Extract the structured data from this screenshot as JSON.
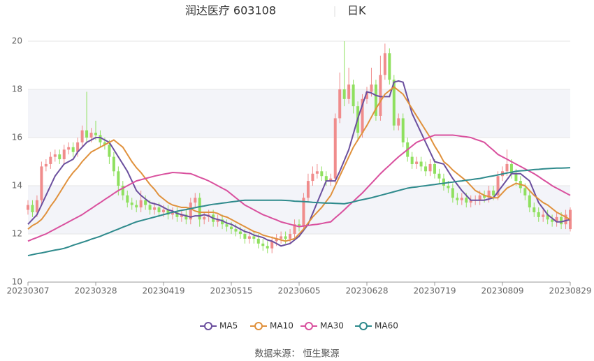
{
  "chart_data": {
    "type": "candlestick",
    "title": "润达医疗 603108",
    "subtitle": "日K",
    "source": "数据来源： 恒生聚源",
    "categories": [
      "20230307",
      null,
      null,
      null,
      null,
      null,
      null,
      null,
      null,
      null,
      null,
      null,
      null,
      null,
      null,
      "20230328",
      null,
      null,
      null,
      null,
      null,
      null,
      null,
      null,
      null,
      null,
      null,
      null,
      null,
      null,
      "20230419",
      null,
      null,
      null,
      null,
      null,
      null,
      null,
      null,
      null,
      null,
      null,
      null,
      null,
      null,
      "20230515",
      null,
      null,
      null,
      null,
      null,
      null,
      null,
      null,
      null,
      null,
      null,
      null,
      null,
      null,
      "20230605",
      null,
      null,
      null,
      null,
      null,
      null,
      null,
      null,
      null,
      null,
      null,
      null,
      null,
      null,
      "20230628",
      null,
      null,
      null,
      null,
      null,
      null,
      null,
      null,
      null,
      null,
      null,
      null,
      null,
      null,
      "20230719",
      null,
      null,
      null,
      null,
      null,
      null,
      null,
      null,
      null,
      null,
      null,
      null,
      null,
      null,
      "20230809",
      null,
      null,
      null,
      null,
      null,
      null,
      null,
      null,
      null,
      null,
      null,
      null,
      null,
      null,
      "20230829"
    ],
    "ohlc": [
      [
        13.0,
        13.4,
        12.8,
        13.2
      ],
      [
        13.2,
        13.4,
        12.7,
        12.9
      ],
      [
        12.9,
        13.6,
        12.7,
        13.4
      ],
      [
        13.4,
        15.0,
        13.2,
        14.8
      ],
      [
        14.8,
        15.1,
        14.6,
        14.9
      ],
      [
        14.9,
        15.4,
        14.7,
        15.2
      ],
      [
        15.2,
        15.5,
        15.0,
        15.3
      ],
      [
        15.3,
        15.5,
        14.9,
        15.1
      ],
      [
        15.1,
        15.7,
        14.9,
        15.5
      ],
      [
        15.5,
        15.8,
        15.3,
        15.6
      ],
      [
        15.6,
        15.8,
        15.2,
        15.4
      ],
      [
        15.4,
        16.0,
        15.2,
        15.8
      ],
      [
        15.8,
        16.5,
        15.6,
        16.3
      ],
      [
        16.3,
        17.9,
        15.8,
        16.0
      ],
      [
        16.0,
        16.4,
        15.8,
        16.2
      ],
      [
        16.2,
        16.7,
        15.9,
        16.1
      ],
      [
        16.1,
        16.3,
        15.6,
        15.8
      ],
      [
        15.8,
        16.0,
        15.5,
        15.7
      ],
      [
        15.7,
        15.9,
        14.9,
        15.2
      ],
      [
        15.2,
        15.4,
        14.4,
        14.6
      ],
      [
        14.6,
        14.8,
        13.6,
        14.0
      ],
      [
        14.0,
        14.2,
        13.4,
        13.6
      ],
      [
        13.6,
        13.8,
        13.1,
        13.3
      ],
      [
        13.3,
        13.5,
        13.0,
        13.2
      ],
      [
        13.2,
        13.4,
        12.9,
        13.1
      ],
      [
        13.1,
        13.8,
        12.9,
        13.4
      ],
      [
        13.4,
        13.6,
        13.0,
        13.2
      ],
      [
        13.2,
        13.4,
        12.8,
        13.0
      ],
      [
        13.0,
        13.3,
        12.8,
        13.1
      ],
      [
        13.1,
        13.3,
        12.7,
        12.9
      ],
      [
        12.9,
        13.2,
        12.7,
        13.0
      ],
      [
        13.0,
        13.2,
        12.6,
        12.8
      ],
      [
        12.8,
        13.1,
        12.6,
        12.9
      ],
      [
        12.9,
        13.1,
        12.5,
        12.7
      ],
      [
        12.7,
        13.0,
        12.5,
        12.8
      ],
      [
        12.8,
        13.0,
        12.4,
        12.6
      ],
      [
        12.6,
        13.5,
        12.4,
        13.3
      ],
      [
        13.3,
        13.7,
        13.1,
        13.5
      ],
      [
        13.5,
        13.7,
        12.3,
        12.6
      ],
      [
        12.6,
        12.9,
        12.4,
        12.7
      ],
      [
        12.7,
        13.0,
        12.5,
        12.8
      ],
      [
        12.8,
        13.0,
        12.3,
        12.5
      ],
      [
        12.5,
        12.8,
        12.3,
        12.6
      ],
      [
        12.6,
        12.8,
        12.2,
        12.4
      ],
      [
        12.4,
        12.6,
        12.1,
        12.3
      ],
      [
        12.3,
        12.5,
        12.0,
        12.2
      ],
      [
        12.2,
        12.4,
        11.9,
        12.1
      ],
      [
        12.1,
        12.3,
        11.8,
        12.0
      ],
      [
        12.0,
        12.2,
        11.6,
        11.8
      ],
      [
        11.8,
        12.1,
        11.6,
        11.9
      ],
      [
        11.9,
        12.1,
        11.6,
        11.8
      ],
      [
        11.8,
        12.0,
        11.4,
        11.6
      ],
      [
        11.6,
        11.8,
        11.3,
        11.5
      ],
      [
        11.5,
        11.7,
        11.2,
        11.4
      ],
      [
        11.4,
        11.9,
        11.2,
        11.7
      ],
      [
        11.7,
        12.0,
        11.5,
        11.8
      ],
      [
        11.8,
        12.1,
        11.6,
        11.9
      ],
      [
        11.9,
        12.1,
        11.6,
        11.8
      ],
      [
        11.8,
        12.2,
        11.6,
        12.0
      ],
      [
        12.0,
        12.6,
        11.8,
        12.4
      ],
      [
        12.4,
        12.6,
        12.1,
        12.3
      ],
      [
        12.3,
        13.7,
        12.1,
        13.5
      ],
      [
        13.5,
        14.5,
        13.3,
        14.2
      ],
      [
        14.2,
        14.8,
        14.0,
        14.5
      ],
      [
        14.5,
        14.9,
        14.3,
        14.6
      ],
      [
        14.6,
        14.8,
        14.2,
        14.4
      ],
      [
        14.4,
        14.6,
        14.0,
        14.2
      ],
      [
        14.2,
        14.5,
        14.0,
        14.3
      ],
      [
        14.3,
        17.0,
        14.1,
        16.8
      ],
      [
        16.8,
        18.7,
        16.6,
        18.0
      ],
      [
        18.0,
        20.0,
        17.3,
        17.6
      ],
      [
        17.6,
        18.9,
        17.4,
        18.2
      ],
      [
        18.2,
        18.4,
        17.0,
        17.3
      ],
      [
        17.3,
        17.5,
        15.9,
        16.2
      ],
      [
        16.2,
        17.8,
        16.0,
        17.6
      ],
      [
        17.6,
        18.1,
        17.4,
        17.9
      ],
      [
        17.9,
        18.9,
        17.7,
        18.2
      ],
      [
        18.2,
        18.4,
        16.7,
        16.9
      ],
      [
        16.9,
        19.4,
        16.7,
        18.6
      ],
      [
        18.6,
        19.9,
        18.4,
        19.5
      ],
      [
        19.5,
        19.7,
        18.2,
        18.4
      ],
      [
        18.4,
        18.6,
        16.3,
        16.5
      ],
      [
        16.5,
        17.0,
        16.3,
        16.8
      ],
      [
        16.8,
        17.0,
        15.6,
        15.8
      ],
      [
        15.8,
        16.0,
        15.0,
        15.2
      ],
      [
        15.2,
        15.4,
        14.7,
        14.9
      ],
      [
        14.9,
        15.2,
        14.7,
        15.0
      ],
      [
        15.0,
        15.2,
        14.6,
        14.8
      ],
      [
        14.8,
        15.0,
        14.4,
        14.6
      ],
      [
        14.6,
        15.1,
        14.4,
        14.9
      ],
      [
        14.9,
        15.1,
        14.3,
        14.5
      ],
      [
        14.5,
        14.7,
        14.1,
        14.3
      ],
      [
        14.3,
        14.5,
        13.8,
        14.0
      ],
      [
        14.0,
        14.2,
        13.7,
        13.9
      ],
      [
        13.9,
        14.1,
        13.3,
        13.5
      ],
      [
        13.5,
        13.7,
        13.2,
        13.4
      ],
      [
        13.4,
        13.7,
        13.2,
        13.5
      ],
      [
        13.5,
        13.7,
        13.1,
        13.3
      ],
      [
        13.3,
        13.6,
        13.1,
        13.4
      ],
      [
        13.4,
        13.6,
        13.2,
        13.4
      ],
      [
        13.4,
        13.8,
        13.2,
        13.6
      ],
      [
        13.6,
        13.8,
        13.3,
        13.5
      ],
      [
        13.5,
        14.0,
        13.3,
        13.8
      ],
      [
        13.8,
        14.0,
        13.4,
        13.6
      ],
      [
        13.6,
        14.6,
        13.4,
        14.4
      ],
      [
        14.4,
        14.8,
        14.2,
        14.6
      ],
      [
        14.6,
        15.5,
        14.4,
        14.9
      ],
      [
        14.9,
        15.1,
        14.3,
        14.5
      ],
      [
        14.5,
        14.7,
        14.0,
        14.2
      ],
      [
        14.2,
        14.4,
        13.7,
        13.9
      ],
      [
        13.9,
        14.1,
        13.4,
        13.6
      ],
      [
        13.6,
        13.8,
        12.9,
        13.1
      ],
      [
        13.1,
        13.3,
        12.7,
        12.9
      ],
      [
        12.9,
        13.1,
        12.5,
        12.7
      ],
      [
        12.7,
        13.0,
        12.5,
        12.8
      ],
      [
        12.8,
        13.0,
        12.4,
        12.6
      ],
      [
        12.6,
        12.8,
        12.3,
        12.5
      ],
      [
        12.5,
        12.9,
        12.3,
        12.7
      ],
      [
        12.7,
        12.9,
        12.2,
        12.4
      ],
      [
        12.4,
        13.0,
        12.2,
        12.8
      ],
      [
        12.2,
        13.1,
        12.1,
        13.0
      ]
    ],
    "up_color": "#f08c8c",
    "down_color": "#8fe05f",
    "series": [
      {
        "name": "MA5",
        "color": "#6b4f9e",
        "values": [
          12.4,
          12.6,
          12.8,
          13.2,
          13.6,
          14.0,
          14.4,
          14.65,
          14.9,
          15.0,
          15.1,
          15.4,
          15.6,
          15.8,
          15.9,
          16.0,
          16.0,
          15.9,
          15.8,
          15.5,
          15.2,
          14.9,
          14.6,
          14.2,
          13.8,
          13.6,
          13.45,
          13.3,
          13.25,
          13.2,
          13.1,
          13.0,
          12.95,
          12.85,
          12.8,
          12.75,
          12.7,
          12.75,
          12.75,
          12.8,
          12.75,
          12.65,
          12.6,
          12.55,
          12.45,
          12.4,
          12.3,
          12.2,
          12.1,
          12.05,
          11.95,
          11.9,
          11.85,
          11.75,
          11.7,
          11.6,
          11.5,
          11.55,
          11.6,
          11.75,
          11.9,
          12.15,
          12.4,
          12.85,
          13.3,
          13.75,
          14.2,
          14.2,
          14.2,
          14.6,
          15.05,
          15.5,
          16.15,
          16.8,
          17.35,
          17.9,
          17.85,
          17.75,
          17.7,
          17.7,
          17.7,
          18.3,
          18.35,
          18.3,
          17.65,
          17.0,
          16.6,
          16.2,
          15.8,
          15.4,
          15.0,
          14.95,
          14.9,
          14.6,
          14.3,
          14.05,
          13.8,
          13.6,
          13.4,
          13.4,
          13.4,
          13.4,
          13.45,
          13.5,
          13.75,
          14.0,
          14.25,
          14.5,
          14.5,
          14.5,
          14.35,
          14.2,
          13.75,
          13.3,
          13.05,
          12.8,
          12.65,
          12.5,
          12.5,
          12.55,
          12.6
        ]
      },
      {
        "name": "MA10",
        "color": "#e0913c",
        "values": [
          12.2,
          12.35,
          12.45,
          12.6,
          12.85,
          13.15,
          13.4,
          13.7,
          14.0,
          14.3,
          14.55,
          14.75,
          15.0,
          15.2,
          15.4,
          15.5,
          15.6,
          15.7,
          15.8,
          15.9,
          15.75,
          15.6,
          15.3,
          15.0,
          14.75,
          14.55,
          14.3,
          14.05,
          13.85,
          13.6,
          13.45,
          13.3,
          13.2,
          13.15,
          13.1,
          13.1,
          13.05,
          12.95,
          12.9,
          12.9,
          12.9,
          12.9,
          12.85,
          12.75,
          12.7,
          12.6,
          12.5,
          12.4,
          12.3,
          12.2,
          12.1,
          12.05,
          11.95,
          11.9,
          11.85,
          11.8,
          11.75,
          11.7,
          11.75,
          11.8,
          12.0,
          12.2,
          12.45,
          12.7,
          12.9,
          13.1,
          13.35,
          13.6,
          14.0,
          14.4,
          14.8,
          15.2,
          15.6,
          15.9,
          16.2,
          16.5,
          16.85,
          17.2,
          17.5,
          17.8,
          17.95,
          18.1,
          17.95,
          17.8,
          17.5,
          17.2,
          16.9,
          16.6,
          16.3,
          16.0,
          15.65,
          15.35,
          15.0,
          14.85,
          14.65,
          14.5,
          14.35,
          14.2,
          14.0,
          13.8,
          13.7,
          13.6,
          13.55,
          13.5,
          13.5,
          13.7,
          13.9,
          14.0,
          14.1,
          14.05,
          14.0,
          13.8,
          13.6,
          13.45,
          13.3,
          13.2,
          13.05,
          12.9,
          12.8,
          12.7,
          12.6
        ]
      },
      {
        "name": "MA30",
        "color": "#d9509e",
        "values": [
          11.7,
          11.78,
          11.85,
          11.93,
          12.0,
          12.1,
          12.2,
          12.3,
          12.4,
          12.5,
          12.6,
          12.7,
          12.8,
          12.93,
          13.05,
          13.18,
          13.3,
          13.43,
          13.55,
          13.68,
          13.8,
          13.9,
          14.0,
          14.1,
          14.2,
          14.25,
          14.3,
          14.35,
          14.4,
          14.44,
          14.48,
          14.51,
          14.55,
          14.54,
          14.53,
          14.51,
          14.5,
          14.43,
          14.35,
          14.28,
          14.2,
          14.1,
          14.0,
          13.9,
          13.8,
          13.65,
          13.5,
          13.35,
          13.2,
          13.1,
          13.0,
          12.9,
          12.8,
          12.73,
          12.65,
          12.58,
          12.5,
          12.45,
          12.4,
          12.35,
          12.3,
          12.33,
          12.35,
          12.38,
          12.4,
          12.43,
          12.47,
          12.5,
          12.67,
          12.83,
          13.0,
          13.18,
          13.35,
          13.53,
          13.7,
          13.9,
          14.1,
          14.3,
          14.5,
          14.68,
          14.85,
          15.03,
          15.2,
          15.35,
          15.5,
          15.65,
          15.8,
          15.88,
          15.95,
          16.03,
          16.1,
          16.1,
          16.1,
          16.1,
          16.1,
          16.08,
          16.05,
          16.03,
          16.0,
          15.93,
          15.87,
          15.8,
          15.63,
          15.47,
          15.3,
          15.2,
          15.1,
          15.0,
          14.9,
          14.8,
          14.7,
          14.6,
          14.5,
          14.38,
          14.25,
          14.13,
          14.0,
          13.9,
          13.8,
          13.7,
          13.6
        ]
      },
      {
        "name": "MA60",
        "color": "#2e8a8c",
        "values": [
          11.1,
          11.14,
          11.18,
          11.21,
          11.25,
          11.29,
          11.33,
          11.36,
          11.4,
          11.46,
          11.53,
          11.59,
          11.65,
          11.71,
          11.78,
          11.84,
          11.9,
          11.98,
          12.05,
          12.13,
          12.2,
          12.28,
          12.35,
          12.43,
          12.5,
          12.55,
          12.6,
          12.65,
          12.7,
          12.75,
          12.8,
          12.85,
          12.9,
          12.94,
          12.98,
          13.01,
          13.05,
          13.09,
          13.13,
          13.16,
          13.2,
          13.23,
          13.25,
          13.28,
          13.3,
          13.33,
          13.35,
          13.38,
          13.4,
          13.4,
          13.4,
          13.4,
          13.4,
          13.4,
          13.4,
          13.4,
          13.4,
          13.39,
          13.38,
          13.36,
          13.35,
          13.34,
          13.33,
          13.31,
          13.3,
          13.29,
          13.28,
          13.28,
          13.27,
          13.26,
          13.25,
          13.29,
          13.33,
          13.38,
          13.42,
          13.46,
          13.5,
          13.55,
          13.6,
          13.65,
          13.7,
          13.75,
          13.8,
          13.85,
          13.9,
          13.93,
          13.95,
          13.98,
          14.0,
          14.03,
          14.05,
          14.08,
          14.1,
          14.13,
          14.15,
          14.18,
          14.2,
          14.23,
          14.25,
          14.28,
          14.3,
          14.34,
          14.38,
          14.41,
          14.45,
          14.49,
          14.53,
          14.56,
          14.6,
          14.62,
          14.63,
          14.65,
          14.67,
          14.68,
          14.7,
          14.71,
          14.72,
          14.73,
          14.73,
          14.74,
          14.75
        ]
      }
    ],
    "ylim": [
      10,
      20
    ],
    "yticks": [
      10,
      12,
      14,
      16,
      18,
      20
    ],
    "grid": true,
    "bands": true
  }
}
